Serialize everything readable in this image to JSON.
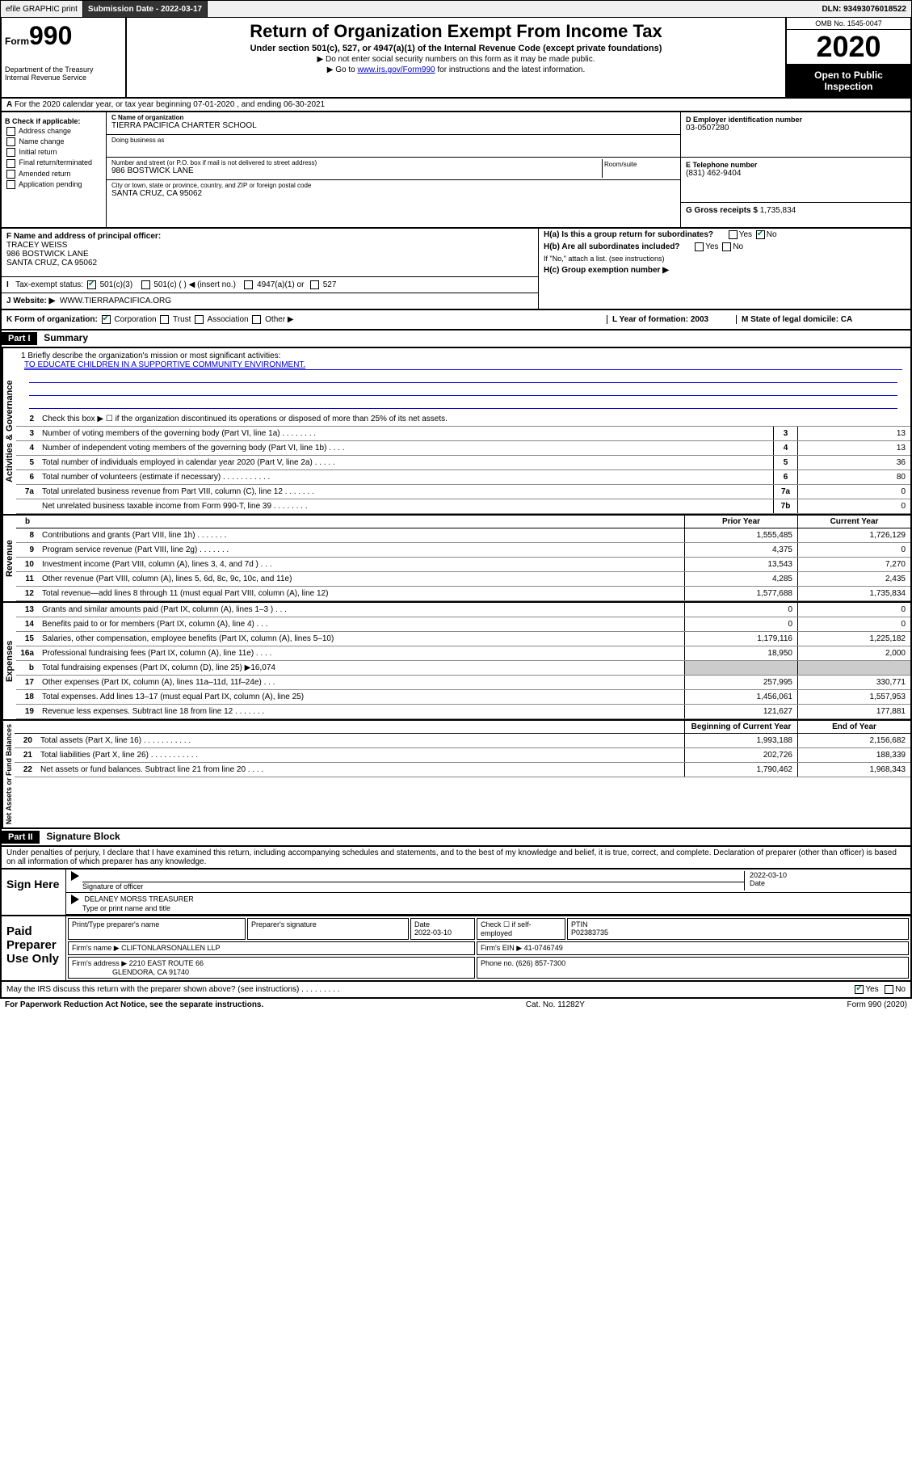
{
  "topbar": {
    "efile": "efile GRAPHIC print",
    "submission_label": "Submission Date",
    "submission_date": "2022-03-17",
    "dln_label": "DLN:",
    "dln": "93493076018522"
  },
  "header": {
    "form_prefix": "Form",
    "form_number": "990",
    "dept": "Department of the Treasury\nInternal Revenue Service",
    "title": "Return of Organization Exempt From Income Tax",
    "subtitle": "Under section 501(c), 527, or 4947(a)(1) of the Internal Revenue Code (except private foundations)",
    "note1": "▶ Do not enter social security numbers on this form as it may be made public.",
    "note2_pre": "▶ Go to ",
    "note2_link": "www.irs.gov/Form990",
    "note2_post": " for instructions and the latest information.",
    "omb": "OMB No. 1545-0047",
    "year": "2020",
    "open": "Open to Public Inspection"
  },
  "lineA": "For the 2020 calendar year, or tax year beginning 07-01-2020    , and ending 06-30-2021",
  "checkB": {
    "title": "B Check if applicable:",
    "opts": [
      "Address change",
      "Name change",
      "Initial return",
      "Final return/terminated",
      "Amended return",
      "Application pending"
    ]
  },
  "entity": {
    "name_label": "C Name of organization",
    "name": "TIERRA PACIFICA CHARTER SCHOOL",
    "dba_label": "Doing business as",
    "dba": "",
    "addr_label": "Number and street (or P.O. box if mail is not delivered to street address)",
    "addr": "986 BOSTWICK LANE",
    "suite_label": "Room/suite",
    "city_label": "City or town, state or province, country, and ZIP or foreign postal code",
    "city": "SANTA CRUZ, CA  95062"
  },
  "rightcol": {
    "ein_label": "D Employer identification number",
    "ein": "03-0507280",
    "phone_label": "E Telephone number",
    "phone": "(831) 462-9404",
    "gross_label": "G Gross receipts $",
    "gross": "1,735,834"
  },
  "officer": {
    "label": "F  Name and address of principal officer:",
    "name": "TRACEY WEISS",
    "addr1": "986 BOSTWICK LANE",
    "addr2": "SANTA CRUZ, CA  95062"
  },
  "taxexempt": {
    "label": "Tax-exempt status:",
    "opt1": "501(c)(3)",
    "opt2": "501(c) (   ) ◀ (insert no.)",
    "opt3": "4947(a)(1) or",
    "opt4": "527"
  },
  "website": {
    "label": "J   Website: ▶",
    "val": "WWW.TIERRAPACIFICA.ORG"
  },
  "h_block": {
    "ha": "H(a)  Is this a group return for subordinates?",
    "hb": "H(b)  Are all subordinates included?",
    "hb_note": "If \"No,\" attach a list. (see instructions)",
    "hc": "H(c)  Group exemption number ▶"
  },
  "k_row": {
    "k": "K Form of organization:",
    "opts": [
      "Corporation",
      "Trust",
      "Association",
      "Other ▶"
    ],
    "l": "L Year of formation: 2003",
    "m": "M State of legal domicile: CA"
  },
  "part1": {
    "num": "Part I",
    "title": "Summary"
  },
  "mission": {
    "label": "1   Briefly describe the organization's mission or most significant activities:",
    "text": "TO EDUCATE CHILDREN IN A SUPPORTIVE COMMUNITY ENVIRONMENT."
  },
  "line2": "Check this box ▶ ☐  if the organization discontinued its operations or disposed of more than 25% of its net assets.",
  "gov_lines": [
    {
      "n": "3",
      "d": "Number of voting members of the governing body (Part VI, line 1a)   .    .    .    .    .    .    .    .",
      "box": "3",
      "v": "13"
    },
    {
      "n": "4",
      "d": "Number of independent voting members of the governing body (Part VI, line 1b)   .    .    .    .",
      "box": "4",
      "v": "13"
    },
    {
      "n": "5",
      "d": "Total number of individuals employed in calendar year 2020 (Part V, line 2a)   .    .    .    .    .",
      "box": "5",
      "v": "36"
    },
    {
      "n": "6",
      "d": "Total number of volunteers (estimate if necessary)   .    .    .    .    .    .    .    .    .    .    .",
      "box": "6",
      "v": "80"
    },
    {
      "n": "7a",
      "d": "Total unrelated business revenue from Part VIII, column (C), line 12   .    .    .    .    .    .    .",
      "box": "7a",
      "v": "0"
    },
    {
      "n": "",
      "d": "Net unrelated business taxable income from Form 990-T, line 39   .    .    .    .    .    .    .    .",
      "box": "7b",
      "v": "0"
    }
  ],
  "two_col_header": {
    "prior": "Prior Year",
    "current": "Current Year"
  },
  "revenue": [
    {
      "n": "8",
      "d": "Contributions and grants (Part VIII, line 1h)   .    .    .    .    .    .    .",
      "p": "1,555,485",
      "c": "1,726,129"
    },
    {
      "n": "9",
      "d": "Program service revenue (Part VIII, line 2g)   .    .    .    .    .    .    .",
      "p": "4,375",
      "c": "0"
    },
    {
      "n": "10",
      "d": "Investment income (Part VIII, column (A), lines 3, 4, and 7d )   .    .    .",
      "p": "13,543",
      "c": "7,270"
    },
    {
      "n": "11",
      "d": "Other revenue (Part VIII, column (A), lines 5, 6d, 8c, 9c, 10c, and 11e)",
      "p": "4,285",
      "c": "2,435"
    },
    {
      "n": "12",
      "d": "Total revenue—add lines 8 through 11 (must equal Part VIII, column (A), line 12)",
      "p": "1,577,688",
      "c": "1,735,834"
    }
  ],
  "expenses": [
    {
      "n": "13",
      "d": "Grants and similar amounts paid (Part IX, column (A), lines 1–3 )   .    .    .",
      "p": "0",
      "c": "0"
    },
    {
      "n": "14",
      "d": "Benefits paid to or for members (Part IX, column (A), line 4)   .    .    .",
      "p": "0",
      "c": "0"
    },
    {
      "n": "15",
      "d": "Salaries, other compensation, employee benefits (Part IX, column (A), lines 5–10)",
      "p": "1,179,116",
      "c": "1,225,182"
    },
    {
      "n": "16a",
      "d": "Professional fundraising fees (Part IX, column (A), line 11e)   .    .    .    .",
      "p": "18,950",
      "c": "2,000"
    },
    {
      "n": "b",
      "d": "Total fundraising expenses (Part IX, column (D), line 25) ▶16,074",
      "p": "",
      "c": "",
      "shade": true
    },
    {
      "n": "17",
      "d": "Other expenses (Part IX, column (A), lines 11a–11d, 11f–24e)   .    .    .",
      "p": "257,995",
      "c": "330,771"
    },
    {
      "n": "18",
      "d": "Total expenses. Add lines 13–17 (must equal Part IX, column (A), line 25)",
      "p": "1,456,061",
      "c": "1,557,953"
    },
    {
      "n": "19",
      "d": "Revenue less expenses. Subtract line 18 from line 12   .    .    .    .    .    .    .",
      "p": "121,627",
      "c": "177,881"
    }
  ],
  "net_header": {
    "begin": "Beginning of Current Year",
    "end": "End of Year"
  },
  "netassets": [
    {
      "n": "20",
      "d": "Total assets (Part X, line 16)   .    .    .    .    .    .    .    .    .    .    .",
      "p": "1,993,188",
      "c": "2,156,682"
    },
    {
      "n": "21",
      "d": "Total liabilities (Part X, line 26)   .    .    .    .    .    .    .    .    .    .    .",
      "p": "202,726",
      "c": "188,339"
    },
    {
      "n": "22",
      "d": "Net assets or fund balances. Subtract line 21 from line 20   .    .    .    .",
      "p": "1,790,462",
      "c": "1,968,343"
    }
  ],
  "part2": {
    "num": "Part II",
    "title": "Signature Block"
  },
  "perjury": "Under penalties of perjury, I declare that I have examined this return, including accompanying schedules and statements, and to the best of my knowledge and belief, it is true, correct, and complete. Declaration of preparer (other than officer) is based on all information of which preparer has any knowledge.",
  "sign": {
    "left": "Sign Here",
    "sig_label": "Signature of officer",
    "date_label": "Date",
    "date": "2022-03-10",
    "name": "DELANEY MORSS  TREASURER",
    "name_label": "Type or print name and title"
  },
  "preparer": {
    "left": "Paid Preparer Use Only",
    "h1": "Print/Type preparer's name",
    "h2": "Preparer's signature",
    "h3": "Date",
    "date": "2022-03-10",
    "h4": "Check ☐  if self-employed",
    "h5": "PTIN",
    "ptin": "P02383735",
    "firm_label": "Firm's name     ▶",
    "firm": "CLIFTONLARSONALLEN LLP",
    "ein_label": "Firm's EIN ▶",
    "ein": "41-0746749",
    "addr_label": "Firm's address ▶",
    "addr1": "2210 EAST ROUTE 66",
    "addr2": "GLENDORA, CA  91740",
    "phone_label": "Phone no.",
    "phone": "(626) 857-7300"
  },
  "discuss": "May the IRS discuss this return with the preparer shown above? (see instructions)   .    .    .    .    .    .    .    .    .",
  "footer": {
    "left": "For Paperwork Reduction Act Notice, see the separate instructions.",
    "mid": "Cat. No. 11282Y",
    "right": "Form 990 (2020)"
  },
  "vlabels": {
    "gov": "Activities & Governance",
    "rev": "Revenue",
    "exp": "Expenses",
    "net": "Net Assets or Fund Balances"
  }
}
